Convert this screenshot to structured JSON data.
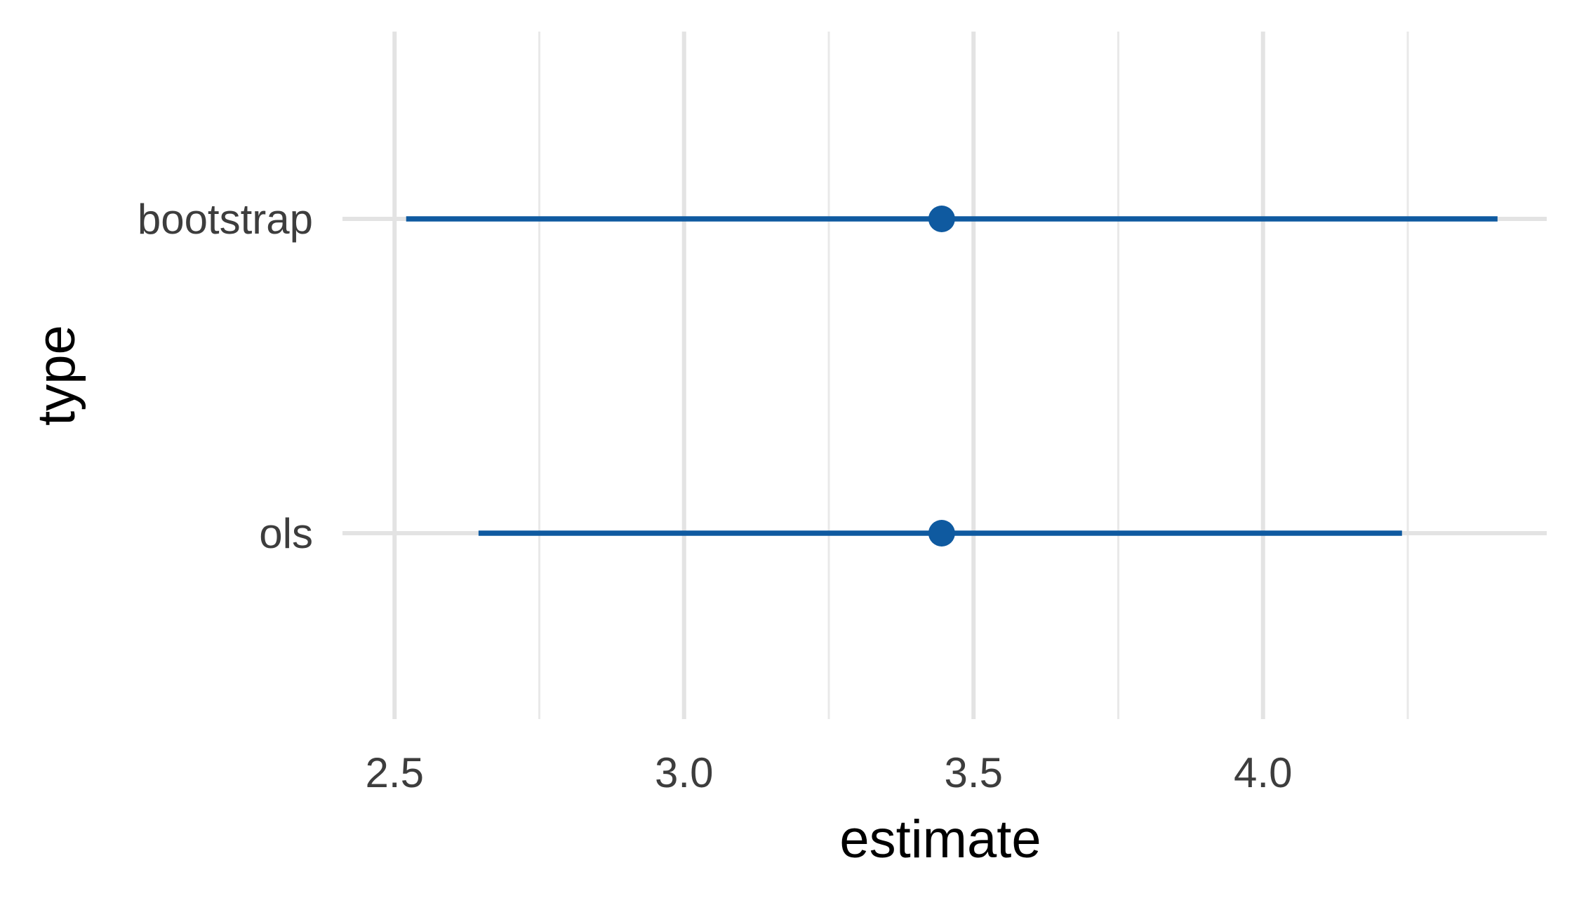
{
  "chart_data": {
    "type": "interval",
    "title": "",
    "xlabel": "estimate",
    "ylabel": "type",
    "xlim": [
      2.41,
      4.49
    ],
    "x_ticks": [
      2.5,
      3.0,
      3.5,
      4.0
    ],
    "x_tick_labels": [
      "2.5",
      "3.0",
      "3.5",
      "4.0"
    ],
    "x_minor_ticks": [
      2.75,
      3.25,
      3.75,
      4.25
    ],
    "categories": [
      "bootstrap",
      "ols"
    ],
    "series": [
      {
        "name": "bootstrap",
        "estimate": 3.445,
        "lower": 2.52,
        "upper": 4.405
      },
      {
        "name": "ols",
        "estimate": 3.445,
        "lower": 2.645,
        "upper": 4.24
      }
    ],
    "grid": true,
    "legend": "none"
  },
  "colors": {
    "series": "#0f5aa0",
    "grid_major": "#e3e3e3",
    "grid_minor": "#e9e9e9",
    "tick_label": "#3d3d3d",
    "axis_title": "#000000",
    "background": "#ffffff"
  }
}
